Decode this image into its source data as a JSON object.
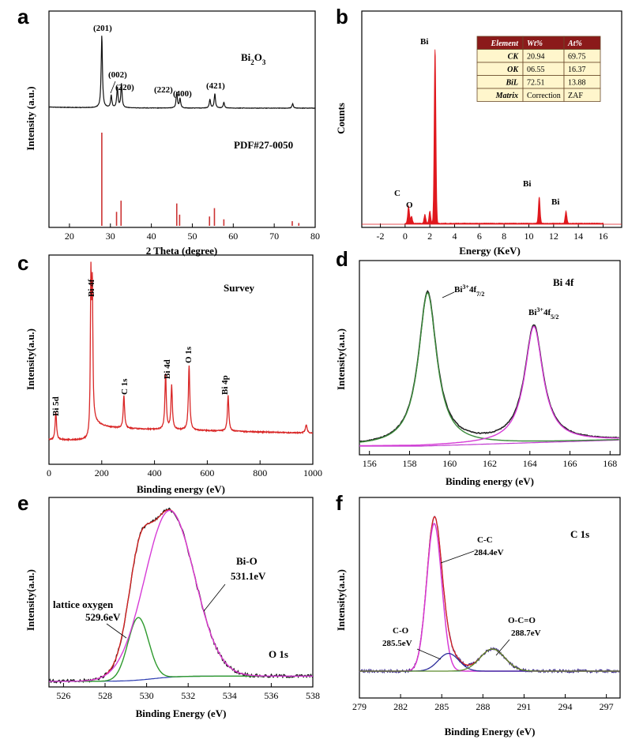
{
  "chart_data": [
    {
      "id": "a",
      "type": "line",
      "panel_label": "a",
      "xlabel": "2 Theta (degree)",
      "ylabel": "Intensity (a.u.)",
      "xlim": [
        15,
        80
      ],
      "xticks": [
        20,
        30,
        40,
        50,
        60,
        70,
        80
      ],
      "series": [
        {
          "name": "Bi2O3",
          "color": "#000000",
          "peaks": [
            [
              27.9,
              1.0
            ],
            [
              30.2,
              0.17
            ],
            [
              31.7,
              0.28
            ],
            [
              32.7,
              0.33
            ],
            [
              46.2,
              0.22
            ],
            [
              47.0,
              0.13
            ],
            [
              54.3,
              0.12
            ],
            [
              55.5,
              0.2
            ],
            [
              57.7,
              0.08
            ],
            [
              74.5,
              0.06
            ]
          ]
        },
        {
          "name": "PDF#27-0050",
          "color": "#cc3333",
          "sticks": [
            [
              27.9,
              1.0
            ],
            [
              31.5,
              0.15
            ],
            [
              32.6,
              0.27
            ],
            [
              46.2,
              0.24
            ],
            [
              46.9,
              0.12
            ],
            [
              54.2,
              0.1
            ],
            [
              55.4,
              0.19
            ],
            [
              57.7,
              0.07
            ],
            [
              74.4,
              0.05
            ],
            [
              76.0,
              0.03
            ]
          ]
        }
      ],
      "annotations": [
        {
          "text": "(201)",
          "x": 27.9
        },
        {
          "text": "(002)",
          "x": 30.2
        },
        {
          "text": "(220)",
          "x": 32.7
        },
        {
          "text": "(222)",
          "x": 46.2
        },
        {
          "text": "(400)",
          "x": 47.0
        },
        {
          "text": "(421)",
          "x": 55.5
        }
      ],
      "legend_text": {
        "main": "Bi",
        "sub": "2",
        "tail": "O",
        "sub2": "3"
      },
      "pdf_label": "PDF#27-0050"
    },
    {
      "id": "b",
      "type": "bar",
      "panel_label": "b",
      "xlabel": "Energy (KeV)",
      "ylabel": "Counts",
      "xlim": [
        -3.5,
        17.5
      ],
      "xticks": [
        -2,
        0,
        2,
        4,
        6,
        8,
        10,
        12,
        14,
        16
      ],
      "peaks": [
        {
          "label": "C",
          "energy": 0.28,
          "height": 0.1
        },
        {
          "label": "O",
          "energy": 0.52,
          "height": 0.04
        },
        {
          "label": "",
          "energy": 1.6,
          "height": 0.05
        },
        {
          "label": "",
          "energy": 2.0,
          "height": 0.07
        },
        {
          "label": "Bi",
          "energy": 2.42,
          "height": 1.0
        },
        {
          "label": "Bi",
          "energy": 10.84,
          "height": 0.15
        },
        {
          "label": "Bi",
          "energy": 13.0,
          "height": 0.07
        }
      ],
      "table": {
        "headers": [
          "Element",
          "Wt%",
          "At%"
        ],
        "rows": [
          [
            "CK",
            "20.94",
            "69.75"
          ],
          [
            "OK",
            "06.55",
            "16.37"
          ],
          [
            "BiL",
            "72.51",
            "13.88"
          ],
          [
            "Matrix",
            "Correction",
            "ZAF"
          ]
        ]
      }
    },
    {
      "id": "c",
      "type": "line",
      "panel_label": "c",
      "title": "Survey",
      "xlabel": "Binding energy (eV)",
      "ylabel": "Intensity(a.u.)",
      "xlim": [
        0,
        1000
      ],
      "xticks": [
        0,
        200,
        400,
        600,
        800,
        1000
      ],
      "peaks": [
        {
          "label": "Bi 5d",
          "energy": 26,
          "height": 0.17
        },
        {
          "label": "Bi 4f",
          "energy": 159,
          "height": 1.0
        },
        {
          "label": "C 1s",
          "energy": 284,
          "height": 0.2
        },
        {
          "label": "Bi 4d",
          "energy": 442,
          "height": 0.34
        },
        {
          "label": "",
          "energy": 465,
          "height": 0.27
        },
        {
          "label": "O 1s",
          "energy": 531,
          "height": 0.4
        },
        {
          "label": "Bi 4p",
          "energy": 679,
          "height": 0.22
        }
      ]
    },
    {
      "id": "d",
      "type": "line",
      "panel_label": "d",
      "title": "Bi 4f",
      "xlabel": "Binding energy (eV)",
      "ylabel": "Intensity(a.u.)",
      "xlim": [
        155.5,
        168.5
      ],
      "xticks": [
        156,
        158,
        160,
        162,
        164,
        166,
        168
      ],
      "components": [
        {
          "name": "Bi3+ 4f7/2",
          "center": 158.9,
          "amplitude": 1.0,
          "width": 0.55,
          "color": "#3a8a3a"
        },
        {
          "name": "Bi3+ 4f5/2",
          "center": 164.2,
          "amplitude": 0.76,
          "width": 0.55,
          "color": "#d63bd6"
        }
      ],
      "annotations": [
        {
          "base": "Bi",
          "sup": "3+",
          "mid": "4f",
          "sub": "7/2"
        },
        {
          "base": "Bi",
          "sup": "3+",
          "mid": "4f",
          "sub": "5/2"
        }
      ]
    },
    {
      "id": "e",
      "type": "line",
      "panel_label": "e",
      "title": "O 1s",
      "xlabel": "Binding Energy (eV)",
      "ylabel": "Intensity(a.u.)",
      "xlim": [
        525.3,
        538
      ],
      "xticks": [
        526,
        528,
        530,
        532,
        534,
        536,
        538
      ],
      "components": [
        {
          "name": "lattice oxygen",
          "value": "529.6eV",
          "center": 529.6,
          "amplitude": 0.36,
          "width": 0.5,
          "color": "#2e9a2e"
        },
        {
          "name": "Bi-O",
          "value": "531.1eV",
          "center": 531.1,
          "amplitude": 0.96,
          "width": 1.2,
          "color": "#d63bd6"
        }
      ]
    },
    {
      "id": "f",
      "type": "line",
      "panel_label": "f",
      "title": "C  1s",
      "xlabel": "Binding Energy (eV)",
      "ylabel": "Intensity(a.u.)",
      "xlim": [
        279,
        298
      ],
      "xticks": [
        279,
        282,
        285,
        288,
        291,
        294,
        297
      ],
      "components": [
        {
          "name": "C-C",
          "value": "284.4eV",
          "center": 284.45,
          "amplitude": 1.0,
          "width": 0.55,
          "color": "#d63bd6"
        },
        {
          "name": "C-O",
          "value": "285.5eV",
          "center": 285.5,
          "amplitude": 0.12,
          "width": 0.75,
          "color": "#2b2b9a"
        },
        {
          "name": "O-C=O",
          "value": "288.7eV",
          "center": 288.7,
          "amplitude": 0.15,
          "width": 0.9,
          "color": "#5a8a2a"
        }
      ]
    }
  ]
}
